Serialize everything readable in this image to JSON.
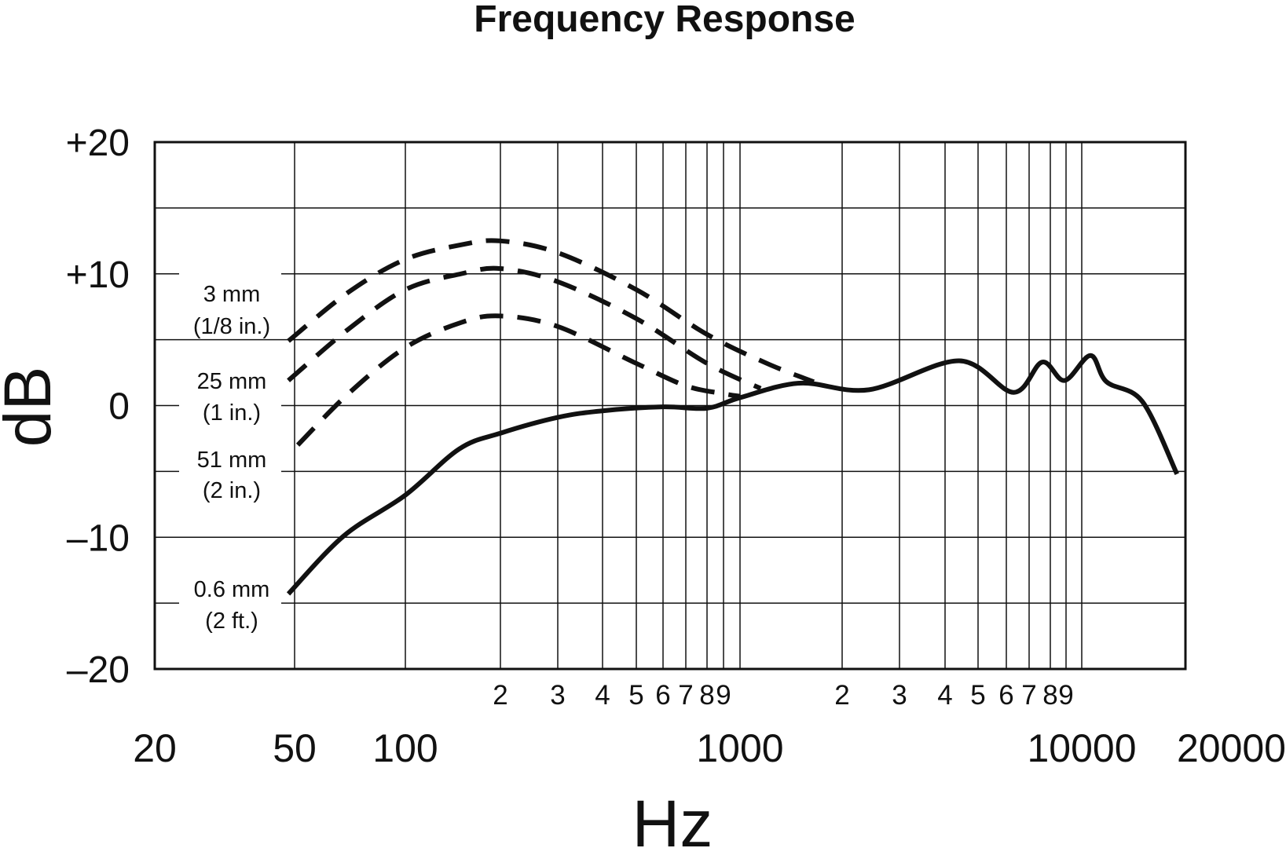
{
  "chart_data": {
    "type": "line",
    "title": "Frequency Response",
    "xlabel": "Hz",
    "ylabel": "dB",
    "x_scale": "log",
    "xlim": [
      20,
      20000
    ],
    "ylim": [
      -20,
      20
    ],
    "grid": true,
    "y_ticks": [
      {
        "value": 20,
        "label": "+20"
      },
      {
        "value": 10,
        "label": "+10"
      },
      {
        "value": 0,
        "label": "0"
      },
      {
        "value": -10,
        "label": "–10"
      },
      {
        "value": -20,
        "label": "–20"
      }
    ],
    "x_major_ticks": [
      {
        "value": 20,
        "label": "20"
      },
      {
        "value": 50,
        "label": "50"
      },
      {
        "value": 100,
        "label": "100"
      },
      {
        "value": 1000,
        "label": "1000"
      },
      {
        "value": 10000,
        "label": "10000"
      },
      {
        "value": 20000,
        "label": "20000"
      }
    ],
    "x_minor_ticks": [
      {
        "value": 200,
        "label": "2"
      },
      {
        "value": 300,
        "label": "3"
      },
      {
        "value": 400,
        "label": "4"
      },
      {
        "value": 500,
        "label": "5"
      },
      {
        "value": 600,
        "label": "6"
      },
      {
        "value": 700,
        "label": "7"
      },
      {
        "value": 800,
        "label": "8"
      },
      {
        "value": 900,
        "label": "9"
      },
      {
        "value": 2000,
        "label": "2"
      },
      {
        "value": 3000,
        "label": "3"
      },
      {
        "value": 4000,
        "label": "4"
      },
      {
        "value": 5000,
        "label": "5"
      },
      {
        "value": 6000,
        "label": "6"
      },
      {
        "value": 7000,
        "label": "7"
      },
      {
        "value": 8000,
        "label": "8"
      },
      {
        "value": 9000,
        "label": "9"
      }
    ],
    "series": [
      {
        "name": "3 mm (1/8 in.)",
        "line_label": [
          "3 mm",
          "(1/8 in.)"
        ],
        "style": "dashed",
        "points": [
          [
            48,
            4.9
          ],
          [
            70,
            8.6
          ],
          [
            100,
            11.1
          ],
          [
            150,
            12.2
          ],
          [
            200,
            12.5
          ],
          [
            300,
            11.6
          ],
          [
            500,
            8.8
          ],
          [
            800,
            5.4
          ],
          [
            1200,
            3.2
          ],
          [
            1650,
            1.8
          ]
        ]
      },
      {
        "name": "25 mm (1 in.)",
        "line_label": [
          "25 mm",
          "(1 in.)"
        ],
        "style": "dashed",
        "points": [
          [
            48,
            1.9
          ],
          [
            70,
            5.8
          ],
          [
            100,
            8.8
          ],
          [
            150,
            10.0
          ],
          [
            200,
            10.4
          ],
          [
            300,
            9.4
          ],
          [
            500,
            6.6
          ],
          [
            800,
            3.2
          ],
          [
            1150,
            1.3
          ]
        ]
      },
      {
        "name": "51 mm (2 in.)",
        "line_label": [
          "51 mm",
          "(2 in.)"
        ],
        "style": "dashed",
        "points": [
          [
            51,
            -3.0
          ],
          [
            70,
            0.9
          ],
          [
            100,
            4.4
          ],
          [
            150,
            6.3
          ],
          [
            200,
            6.8
          ],
          [
            300,
            6.0
          ],
          [
            500,
            3.2
          ],
          [
            700,
            1.5
          ],
          [
            900,
            0.9
          ],
          [
            1000,
            0.7
          ]
        ]
      },
      {
        "name": "0.6 mm (2 ft.)",
        "line_label": [
          "0.6 mm",
          "(2 ft.)"
        ],
        "style": "solid",
        "points": [
          [
            48,
            -14.3
          ],
          [
            68,
            -9.9
          ],
          [
            100,
            -6.8
          ],
          [
            148,
            -3.3
          ],
          [
            200,
            -2.1
          ],
          [
            300,
            -0.9
          ],
          [
            400,
            -0.4
          ],
          [
            600,
            -0.1
          ],
          [
            800,
            -0.2
          ],
          [
            1000,
            0.6
          ],
          [
            1500,
            1.7
          ],
          [
            2420,
            1.2
          ],
          [
            4400,
            3.4
          ],
          [
            6300,
            1.0
          ],
          [
            7600,
            3.3
          ],
          [
            8900,
            1.9
          ],
          [
            10600,
            3.8
          ],
          [
            11800,
            1.8
          ],
          [
            15000,
            0.3
          ],
          [
            18900,
            -5.2
          ]
        ]
      }
    ]
  }
}
